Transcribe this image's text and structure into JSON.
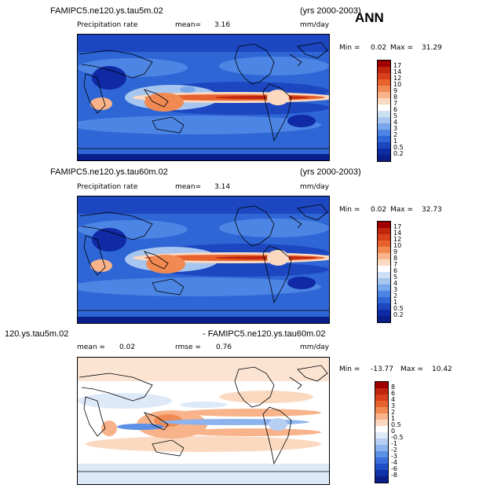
{
  "season": "ANN",
  "panels": [
    {
      "case": "FAMIPC5.ne120.ys.tau5m.02",
      "years": "(yrs 2000-2003)",
      "variable": "Precipitation rate",
      "stat_label": "mean=",
      "stat_value": "3.16",
      "units": "mm/day",
      "min_label": "Min =",
      "min_value": "0.02",
      "max_label": "Max =",
      "max_value": "31.29",
      "levels": [
        "17",
        "14",
        "12",
        "10",
        "9",
        "8",
        "7",
        "6",
        "5",
        "4",
        "3",
        "2",
        "1",
        "0.5",
        "0.2"
      ]
    },
    {
      "case": "FAMIPC5.ne120.ys.tau60m.02",
      "years": "(yrs 2000-2003)",
      "variable": "Precipitation rate",
      "stat_label": "mean=",
      "stat_value": "3.14",
      "units": "mm/day",
      "min_label": "Min =",
      "min_value": "0.02",
      "max_label": "Max =",
      "max_value": "32.73",
      "levels": [
        "17",
        "14",
        "12",
        "10",
        "9",
        "8",
        "7",
        "6",
        "5",
        "4",
        "3",
        "2",
        "1",
        "0.5",
        "0.2"
      ]
    },
    {
      "case_left": "120.ys.tau5m.02",
      "case_right": "- FAMIPC5.ne120.ys.tau60m.02",
      "stat_label": "mean =",
      "stat_value": "0.02",
      "rmse_label": "rmse =",
      "rmse_value": "0.76",
      "units": "mm/day",
      "min_label": "Min =",
      "min_value": "-13.77",
      "max_label": "Max =",
      "max_value": "10.42",
      "levels": [
        "8",
        "6",
        "4",
        "3",
        "2",
        "1",
        "0.5",
        "0",
        "-0.5",
        "-1",
        "-2",
        "-3",
        "-4",
        "-6",
        "-8"
      ]
    }
  ],
  "colors": {
    "precip_scale": [
      "#9e0000",
      "#c1250d",
      "#d7401c",
      "#e8622e",
      "#f08a52",
      "#f8b38a",
      "#fbd9c0",
      "#ffffff",
      "#cfe0f5",
      "#a7c6ef",
      "#7aa6ea",
      "#4d85e4",
      "#2f66d6",
      "#1c47c0",
      "#0f2aa4",
      "#0a1e8a"
    ],
    "diff_scale": [
      "#9e0000",
      "#c1250d",
      "#d7401c",
      "#e8622e",
      "#f08a52",
      "#f8b38a",
      "#fbd9c0",
      "#ffffff",
      "#dde9f7",
      "#b7cff2",
      "#8db3ee",
      "#5c8fe6",
      "#3a6fdb",
      "#1f4ec6",
      "#1233a8",
      "#0a1e8a"
    ]
  }
}
